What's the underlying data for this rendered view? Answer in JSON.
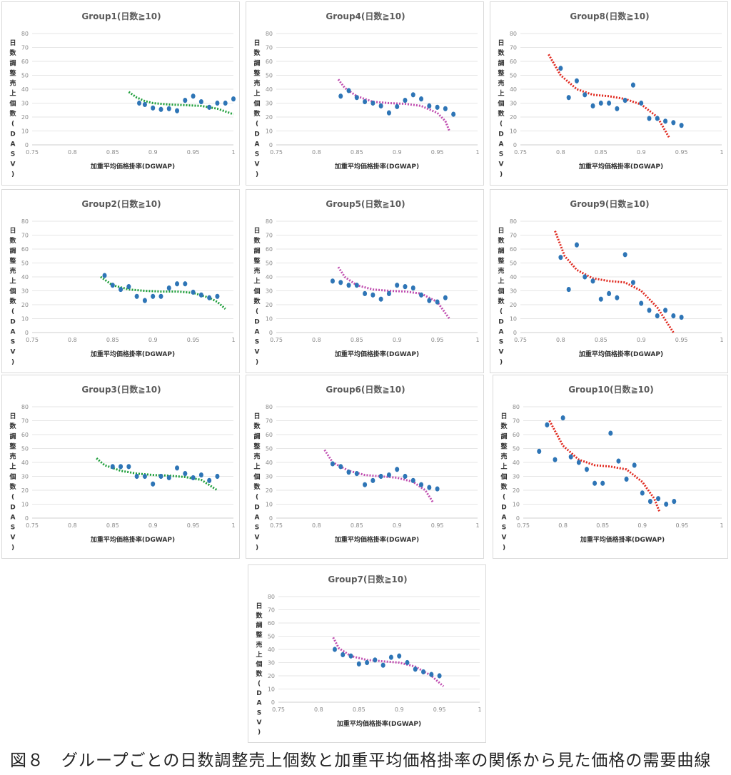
{
  "figure": {
    "caption": "図８　グループごとの日数調整売上個数と加重平均価格掛率の関係から見た価格の需要曲線"
  },
  "colors": {
    "points": "#2e75b6",
    "green": "#1e9e3a",
    "magenta": "#c04eb0",
    "red": "#e0281e"
  },
  "chart_data": [
    {
      "type": "scatter",
      "title": "Group1(日数≧10)",
      "xlabel": "加重平均価格掛率(DGWAP)",
      "ylabel": "日数調整売上個数(DASV)",
      "xlim": [
        0.75,
        1
      ],
      "ylim": [
        0,
        80
      ],
      "x_ticks": [
        "0.75",
        "0.8",
        "0.85",
        "0.9",
        "0.95",
        "1"
      ],
      "y_ticks": [
        "0",
        "10",
        "20",
        "30",
        "40",
        "50",
        "60",
        "70",
        "80"
      ],
      "grid": true,
      "trend_color": "green",
      "points": [
        [
          0.883,
          30
        ],
        [
          0.89,
          29
        ],
        [
          0.9,
          26.5
        ],
        [
          0.91,
          25.5
        ],
        [
          0.92,
          26
        ],
        [
          0.93,
          24.5
        ],
        [
          0.94,
          32
        ],
        [
          0.95,
          35
        ],
        [
          0.96,
          31
        ],
        [
          0.97,
          27
        ],
        [
          0.98,
          30
        ],
        [
          0.99,
          30
        ],
        [
          1.0,
          33
        ]
      ],
      "trend": [
        [
          0.87,
          38
        ],
        [
          0.88,
          34
        ],
        [
          0.89,
          31.5
        ],
        [
          0.9,
          30
        ],
        [
          0.92,
          29
        ],
        [
          0.94,
          28.5
        ],
        [
          0.96,
          28
        ],
        [
          0.98,
          26
        ],
        [
          1.0,
          22
        ]
      ]
    },
    {
      "type": "scatter",
      "title": "Group2(日数≧10)",
      "xlabel": "加重平均価格掛率(DGWAP)",
      "ylabel": "日数調整売上個数(DASV)",
      "xlim": [
        0.75,
        1
      ],
      "ylim": [
        0,
        80
      ],
      "x_ticks": [
        "0.75",
        "0.8",
        "0.85",
        "0.9",
        "0.95",
        "1"
      ],
      "y_ticks": [
        "0",
        "10",
        "20",
        "30",
        "40",
        "50",
        "60",
        "70",
        "80"
      ],
      "grid": true,
      "trend_color": "green",
      "points": [
        [
          0.84,
          41
        ],
        [
          0.85,
          34
        ],
        [
          0.86,
          31
        ],
        [
          0.87,
          33
        ],
        [
          0.88,
          26
        ],
        [
          0.89,
          23
        ],
        [
          0.9,
          26
        ],
        [
          0.91,
          26
        ],
        [
          0.92,
          32
        ],
        [
          0.93,
          35
        ],
        [
          0.94,
          35
        ],
        [
          0.95,
          29
        ],
        [
          0.96,
          27
        ],
        [
          0.97,
          25
        ],
        [
          0.98,
          26
        ]
      ],
      "trend": [
        [
          0.835,
          40
        ],
        [
          0.85,
          34
        ],
        [
          0.87,
          31
        ],
        [
          0.89,
          30
        ],
        [
          0.91,
          29.5
        ],
        [
          0.93,
          29.5
        ],
        [
          0.95,
          28.5
        ],
        [
          0.97,
          25
        ],
        [
          0.98,
          22
        ],
        [
          0.99,
          17
        ]
      ]
    },
    {
      "type": "scatter",
      "title": "Group3(日数≧10)",
      "xlabel": "加重平均価格掛率(DGWAP)",
      "ylabel": "日数調整売上個数(DASV)",
      "xlim": [
        0.75,
        1
      ],
      "ylim": [
        0,
        80
      ],
      "x_ticks": [
        "0.75",
        "0.8",
        "0.85",
        "0.9",
        "0.95",
        "1"
      ],
      "y_ticks": [
        "0",
        "10",
        "20",
        "30",
        "40",
        "50",
        "60",
        "70",
        "80"
      ],
      "grid": true,
      "trend_color": "green",
      "points": [
        [
          0.85,
          37
        ],
        [
          0.86,
          37
        ],
        [
          0.87,
          37
        ],
        [
          0.88,
          30
        ],
        [
          0.89,
          30
        ],
        [
          0.9,
          24.5
        ],
        [
          0.91,
          30
        ],
        [
          0.92,
          29
        ],
        [
          0.93,
          36
        ],
        [
          0.94,
          32
        ],
        [
          0.95,
          29
        ],
        [
          0.96,
          31
        ],
        [
          0.97,
          27
        ],
        [
          0.98,
          30
        ]
      ],
      "trend": [
        [
          0.83,
          43
        ],
        [
          0.84,
          38
        ],
        [
          0.86,
          34
        ],
        [
          0.88,
          32
        ],
        [
          0.9,
          31
        ],
        [
          0.92,
          30.5
        ],
        [
          0.94,
          29.5
        ],
        [
          0.96,
          27.5
        ],
        [
          0.98,
          20
        ]
      ]
    },
    {
      "type": "scatter",
      "title": "Group4(日数≧10)",
      "xlabel": "加重平均価格掛率(DGWAP)",
      "ylabel": "日数調整売上個数(DASV)",
      "xlim": [
        0.75,
        1
      ],
      "ylim": [
        0,
        80
      ],
      "x_ticks": [
        "0.75",
        "0.8",
        "0.85",
        "0.9",
        "0.95",
        "1"
      ],
      "y_ticks": [
        "0",
        "10",
        "20",
        "30",
        "40",
        "50",
        "60",
        "70",
        "80"
      ],
      "grid": true,
      "trend_color": "magenta",
      "points": [
        [
          0.83,
          35
        ],
        [
          0.84,
          39
        ],
        [
          0.85,
          34
        ],
        [
          0.86,
          31
        ],
        [
          0.87,
          30
        ],
        [
          0.88,
          28
        ],
        [
          0.89,
          23
        ],
        [
          0.9,
          27.5
        ],
        [
          0.91,
          32
        ],
        [
          0.92,
          36
        ],
        [
          0.93,
          33
        ],
        [
          0.94,
          28
        ],
        [
          0.95,
          27
        ],
        [
          0.96,
          26
        ],
        [
          0.97,
          22
        ]
      ],
      "trend": [
        [
          0.827,
          47
        ],
        [
          0.835,
          41
        ],
        [
          0.85,
          35
        ],
        [
          0.87,
          31
        ],
        [
          0.89,
          30
        ],
        [
          0.91,
          29.5
        ],
        [
          0.93,
          28
        ],
        [
          0.95,
          23
        ],
        [
          0.96,
          17
        ],
        [
          0.965,
          10
        ]
      ]
    },
    {
      "type": "scatter",
      "title": "Group5(日数≧10)",
      "xlabel": "加重平均価格掛率(DGWAP)",
      "ylabel": "日数調整売上個数(DASV)",
      "xlim": [
        0.75,
        1
      ],
      "ylim": [
        0,
        80
      ],
      "x_ticks": [
        "0.75",
        "0.8",
        "0.85",
        "0.9",
        "0.95",
        "1"
      ],
      "y_ticks": [
        "0",
        "10",
        "20",
        "30",
        "40",
        "50",
        "60",
        "70",
        "80"
      ],
      "grid": true,
      "trend_color": "magenta",
      "points": [
        [
          0.82,
          37
        ],
        [
          0.83,
          36
        ],
        [
          0.84,
          34
        ],
        [
          0.85,
          34
        ],
        [
          0.86,
          28
        ],
        [
          0.87,
          27
        ],
        [
          0.88,
          24
        ],
        [
          0.89,
          28
        ],
        [
          0.9,
          34
        ],
        [
          0.91,
          33
        ],
        [
          0.92,
          32
        ],
        [
          0.93,
          27
        ],
        [
          0.94,
          23
        ],
        [
          0.95,
          22
        ],
        [
          0.96,
          25
        ]
      ],
      "trend": [
        [
          0.827,
          47
        ],
        [
          0.835,
          40
        ],
        [
          0.85,
          34
        ],
        [
          0.87,
          31
        ],
        [
          0.89,
          30
        ],
        [
          0.91,
          29.5
        ],
        [
          0.93,
          28
        ],
        [
          0.95,
          22
        ],
        [
          0.965,
          10
        ]
      ]
    },
    {
      "type": "scatter",
      "title": "Group6(日数≧10)",
      "xlabel": "加重平均価格掛率(DGWAP)",
      "ylabel": "日数調整売上個数(DASV)",
      "xlim": [
        0.75,
        1
      ],
      "ylim": [
        0,
        80
      ],
      "x_ticks": [
        "0.75",
        "0.8",
        "0.85",
        "0.9",
        "0.95",
        "1"
      ],
      "y_ticks": [
        "0",
        "10",
        "20",
        "30",
        "40",
        "50",
        "60",
        "70",
        "80"
      ],
      "grid": true,
      "trend_color": "magenta",
      "points": [
        [
          0.82,
          39
        ],
        [
          0.83,
          37
        ],
        [
          0.84,
          33
        ],
        [
          0.85,
          32
        ],
        [
          0.86,
          24
        ],
        [
          0.87,
          27
        ],
        [
          0.88,
          30
        ],
        [
          0.89,
          31
        ],
        [
          0.9,
          35
        ],
        [
          0.91,
          30
        ],
        [
          0.92,
          27
        ],
        [
          0.93,
          24
        ],
        [
          0.94,
          22
        ],
        [
          0.95,
          21
        ]
      ],
      "trend": [
        [
          0.81,
          49
        ],
        [
          0.82,
          40
        ],
        [
          0.84,
          34
        ],
        [
          0.86,
          31
        ],
        [
          0.88,
          30
        ],
        [
          0.9,
          29
        ],
        [
          0.92,
          26
        ],
        [
          0.935,
          20
        ],
        [
          0.945,
          11
        ]
      ]
    },
    {
      "type": "scatter",
      "title": "Group7(日数≧10)",
      "xlabel": "加重平均価格掛率(DGWAP)",
      "ylabel": "日数調整売上個数(DASV)",
      "xlim": [
        0.75,
        1
      ],
      "ylim": [
        0,
        80
      ],
      "x_ticks": [
        "0.75",
        "0.8",
        "0.85",
        "0.9",
        "0.95",
        "1"
      ],
      "y_ticks": [
        "0",
        "10",
        "20",
        "30",
        "40",
        "50",
        "60",
        "70",
        "80"
      ],
      "grid": true,
      "trend_color": "magenta",
      "points": [
        [
          0.82,
          40
        ],
        [
          0.83,
          36
        ],
        [
          0.84,
          35
        ],
        [
          0.85,
          29
        ],
        [
          0.86,
          30
        ],
        [
          0.87,
          32
        ],
        [
          0.88,
          28
        ],
        [
          0.89,
          34
        ],
        [
          0.9,
          35
        ],
        [
          0.91,
          30
        ],
        [
          0.92,
          25
        ],
        [
          0.93,
          23
        ],
        [
          0.94,
          21
        ],
        [
          0.95,
          20
        ]
      ],
      "trend": [
        [
          0.818,
          49
        ],
        [
          0.825,
          41
        ],
        [
          0.84,
          35
        ],
        [
          0.86,
          32
        ],
        [
          0.88,
          31
        ],
        [
          0.9,
          30
        ],
        [
          0.92,
          27
        ],
        [
          0.94,
          20
        ],
        [
          0.955,
          12
        ]
      ]
    },
    {
      "type": "scatter",
      "title": "Group8(日数≧10)",
      "xlabel": "加重平均価格掛率(DGWAP)",
      "ylabel": "日数調整売上個数(DASV)",
      "xlim": [
        0.75,
        1
      ],
      "ylim": [
        0,
        80
      ],
      "x_ticks": [
        "0.75",
        "0.8",
        "0.85",
        "0.9",
        "0.95",
        "1"
      ],
      "y_ticks": [
        "0",
        "10",
        "20",
        "30",
        "40",
        "50",
        "60",
        "70",
        "80"
      ],
      "grid": true,
      "trend_color": "red",
      "points": [
        [
          0.8,
          55
        ],
        [
          0.81,
          34
        ],
        [
          0.82,
          46
        ],
        [
          0.83,
          36
        ],
        [
          0.84,
          28
        ],
        [
          0.85,
          30
        ],
        [
          0.86,
          30
        ],
        [
          0.87,
          26
        ],
        [
          0.88,
          32
        ],
        [
          0.89,
          43
        ],
        [
          0.9,
          30
        ],
        [
          0.91,
          19
        ],
        [
          0.92,
          19
        ],
        [
          0.93,
          17
        ],
        [
          0.94,
          16
        ],
        [
          0.95,
          14
        ]
      ],
      "trend": [
        [
          0.785,
          65
        ],
        [
          0.8,
          50
        ],
        [
          0.82,
          40
        ],
        [
          0.84,
          36
        ],
        [
          0.86,
          35
        ],
        [
          0.88,
          33
        ],
        [
          0.9,
          29
        ],
        [
          0.92,
          20
        ],
        [
          0.935,
          5
        ]
      ]
    },
    {
      "type": "scatter",
      "title": "Group9(日数≧10)",
      "xlabel": "加重平均価格掛率(DGWAP)",
      "ylabel": "日数調整売上個数(DASV)",
      "xlim": [
        0.75,
        1
      ],
      "ylim": [
        0,
        80
      ],
      "x_ticks": [
        "0.75",
        "0.8",
        "0.85",
        "0.9",
        "0.95",
        "1"
      ],
      "y_ticks": [
        "0",
        "10",
        "20",
        "30",
        "40",
        "50",
        "60",
        "70",
        "80"
      ],
      "grid": true,
      "trend_color": "red",
      "points": [
        [
          0.8,
          54
        ],
        [
          0.81,
          31
        ],
        [
          0.82,
          63
        ],
        [
          0.83,
          40
        ],
        [
          0.84,
          37
        ],
        [
          0.85,
          24
        ],
        [
          0.86,
          28
        ],
        [
          0.87,
          25
        ],
        [
          0.88,
          56
        ],
        [
          0.89,
          36
        ],
        [
          0.9,
          21
        ],
        [
          0.91,
          16
        ],
        [
          0.92,
          12
        ],
        [
          0.93,
          16
        ],
        [
          0.94,
          12
        ],
        [
          0.95,
          11
        ]
      ],
      "trend": [
        [
          0.793,
          73
        ],
        [
          0.805,
          55
        ],
        [
          0.82,
          45
        ],
        [
          0.84,
          39
        ],
        [
          0.86,
          37
        ],
        [
          0.88,
          36
        ],
        [
          0.9,
          30
        ],
        [
          0.92,
          18
        ],
        [
          0.94,
          0
        ]
      ]
    },
    {
      "type": "scatter",
      "title": "Group10(日数≧10)",
      "xlabel": "加重平均価格掛率(DGWAP)",
      "ylabel": "日数調整売上個数(DASV)",
      "xlim": [
        0.75,
        1
      ],
      "ylim": [
        0,
        80
      ],
      "x_ticks": [
        "0.75",
        "0.8",
        "0.85",
        "0.9",
        "0.95",
        "1"
      ],
      "y_ticks": [
        "0",
        "10",
        "20",
        "30",
        "40",
        "50",
        "60",
        "70",
        "80"
      ],
      "grid": true,
      "trend_color": "red",
      "points": [
        [
          0.77,
          48
        ],
        [
          0.78,
          67
        ],
        [
          0.79,
          42
        ],
        [
          0.8,
          72
        ],
        [
          0.81,
          44
        ],
        [
          0.82,
          40
        ],
        [
          0.83,
          35
        ],
        [
          0.84,
          25
        ],
        [
          0.85,
          25
        ],
        [
          0.86,
          61
        ],
        [
          0.87,
          41
        ],
        [
          0.88,
          28
        ],
        [
          0.89,
          38
        ],
        [
          0.9,
          18
        ],
        [
          0.91,
          12
        ],
        [
          0.92,
          14
        ],
        [
          0.93,
          10
        ],
        [
          0.94,
          12
        ]
      ],
      "trend": [
        [
          0.783,
          70
        ],
        [
          0.8,
          52
        ],
        [
          0.82,
          42
        ],
        [
          0.84,
          38
        ],
        [
          0.86,
          37
        ],
        [
          0.88,
          35
        ],
        [
          0.9,
          26
        ],
        [
          0.915,
          14
        ],
        [
          0.922,
          4
        ]
      ]
    }
  ]
}
